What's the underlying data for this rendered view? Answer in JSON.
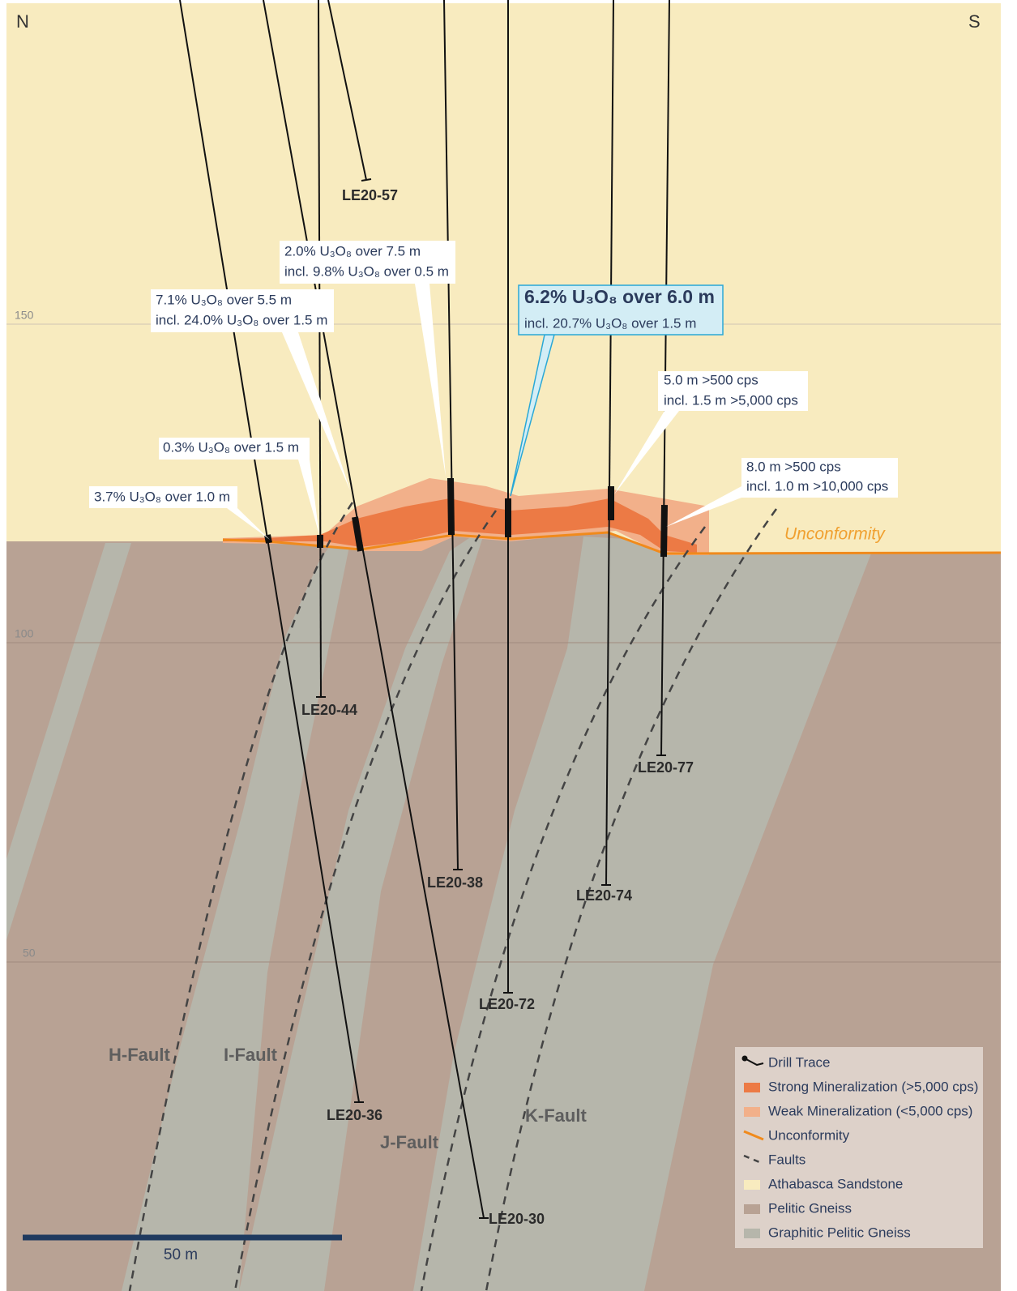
{
  "header": {
    "north": "N",
    "south": "S"
  },
  "elevation_labels": [
    150,
    100,
    50
  ],
  "drill_holes": [
    "LE20-57",
    "LE20-44",
    "LE20-38",
    "LE20-77",
    "LE20-74",
    "LE20-72",
    "LE20-36",
    "LE20-30"
  ],
  "assays": [
    {
      "lines": [
        "2.0% U₃O₈ over 7.5 m",
        "incl. 9.8% U₃O₈ over 0.5 m"
      ]
    },
    {
      "lines": [
        "7.1% U₃O₈ over 5.5 m",
        "incl. 24.0% U₃O₈ over 1.5 m"
      ]
    },
    {
      "lines": [
        "6.2% U₃O₈ over 6.0 m",
        "incl. 20.7% U₃O₈ over 1.5 m"
      ]
    },
    {
      "lines": [
        "5.0 m >500 cps",
        "incl. 1.5 m >5,000 cps"
      ]
    },
    {
      "lines": [
        "0.3% U₃O₈ over 1.5 m"
      ]
    },
    {
      "lines": [
        "3.7% U₃O₈ over 1.0 m"
      ]
    },
    {
      "lines": [
        "8.0 m >500 cps",
        "incl. 1.0 m >10,000 cps"
      ]
    }
  ],
  "unconformity_label": "Unconformity",
  "faults": [
    "H-Fault",
    "I-Fault",
    "J-Fault",
    "K-Fault"
  ],
  "legend": [
    "Drill Trace",
    "Strong Mineralization (>5,000 cps)",
    "Weak Mineralization (<5,000 cps)",
    "Unconformity",
    "Faults",
    "Athabasca Sandstone",
    "Pelitic Gneiss",
    "Graphitic Pelitic Gneiss"
  ],
  "scale_bar": "50 m"
}
